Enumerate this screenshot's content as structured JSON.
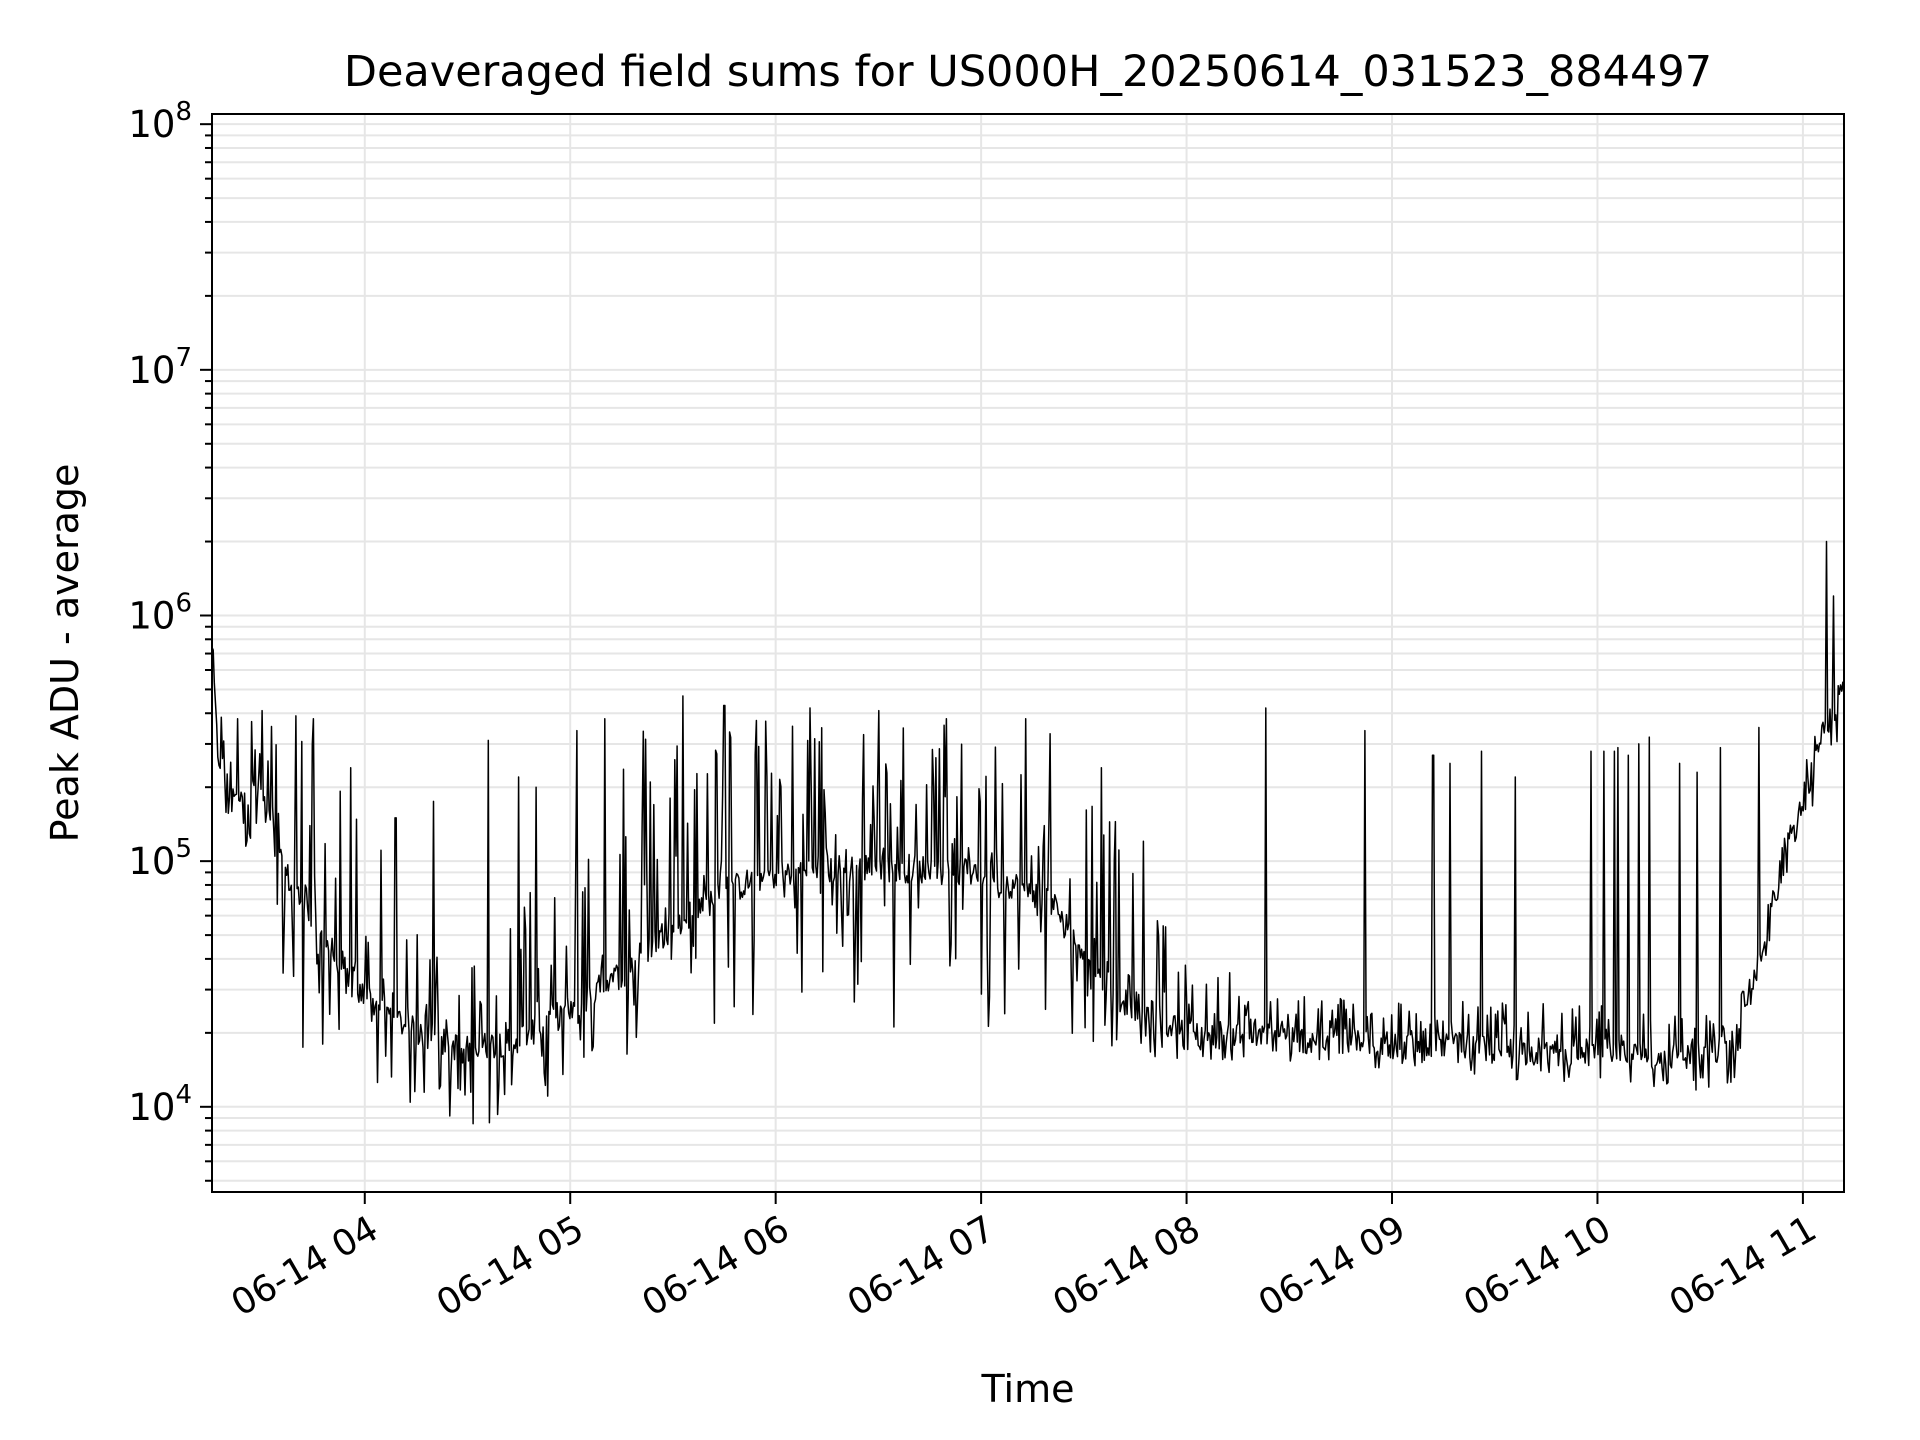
{
  "chart_data": {
    "type": "line",
    "title": "Deaveraged field sums for US000H_20250614_031523_884497",
    "xlabel": "Time",
    "ylabel": "Peak ADU - average",
    "x_axis": {
      "kind": "time",
      "range": [
        "06-14 03:15:23",
        "06-14 11:12:00"
      ],
      "ticks": [
        "06-14 04",
        "06-14 05",
        "06-14 06",
        "06-14 07",
        "06-14 08",
        "06-14 09",
        "06-14 10",
        "06-14 11"
      ]
    },
    "y_axis": {
      "scale": "log",
      "range": [
        4500,
        110000000
      ],
      "ticks": [
        {
          "value": 10000,
          "base": "10",
          "exp": "4"
        },
        {
          "value": 100000,
          "base": "10",
          "exp": "5"
        },
        {
          "value": 1000000,
          "base": "10",
          "exp": "6"
        },
        {
          "value": 10000000,
          "base": "10",
          "exp": "7"
        },
        {
          "value": 100000000,
          "base": "10",
          "exp": "8"
        }
      ]
    },
    "grid": true,
    "line_color": "#000000",
    "series": [
      {
        "baseline": [
          [
            "06-14 03:15",
            1000000
          ],
          [
            "06-14 03:17",
            280000
          ],
          [
            "06-14 03:20",
            200000
          ],
          [
            "06-14 03:30",
            190000
          ],
          [
            "06-14 03:35",
            100000
          ],
          [
            "06-14 03:45",
            55000
          ],
          [
            "06-14 04:00",
            28000
          ],
          [
            "06-14 04:15",
            20000
          ],
          [
            "06-14 04:30",
            17000
          ],
          [
            "06-14 04:45",
            19000
          ],
          [
            "06-14 05:00",
            25000
          ],
          [
            "06-14 05:15",
            35000
          ],
          [
            "06-14 05:30",
            55000
          ],
          [
            "06-14 05:45",
            75000
          ],
          [
            "06-14 06:00",
            90000
          ],
          [
            "06-14 06:30",
            95000
          ],
          [
            "06-14 07:00",
            90000
          ],
          [
            "06-14 07:20",
            70000
          ],
          [
            "06-14 07:40",
            28000
          ],
          [
            "06-14 08:00",
            20000
          ],
          [
            "06-14 08:30",
            19000
          ],
          [
            "06-14 09:00",
            18000
          ],
          [
            "06-14 09:30",
            17000
          ],
          [
            "06-14 10:00",
            16500
          ],
          [
            "06-14 10:30",
            16000
          ],
          [
            "06-14 10:40",
            18000
          ],
          [
            "06-14 10:45",
            30000
          ],
          [
            "06-14 10:50",
            60000
          ],
          [
            "06-14 10:55",
            100000
          ],
          [
            "06-14 11:00",
            170000
          ],
          [
            "06-14 11:05",
            300000
          ],
          [
            "06-14 11:10",
            450000
          ],
          [
            "06-14 11:12",
            480000
          ]
        ],
        "low": [
          [
            "06-14 03:15",
            150000
          ],
          [
            "06-14 03:30",
            100000
          ],
          [
            "06-14 03:40",
            18000
          ],
          [
            "06-14 04:00",
            12000
          ],
          [
            "06-14 04:30",
            8000
          ],
          [
            "06-14 04:45",
            9000
          ],
          [
            "06-14 05:00",
            11000
          ],
          [
            "06-14 05:30",
            17000
          ],
          [
            "06-14 06:00",
            18000
          ],
          [
            "06-14 06:30",
            20000
          ],
          [
            "06-14 07:00",
            18000
          ],
          [
            "06-14 07:30",
            17000
          ],
          [
            "06-14 07:45",
            16000
          ],
          [
            "06-14 08:30",
            15000
          ],
          [
            "06-14 09:30",
            13000
          ],
          [
            "06-14 10:00",
            12000
          ],
          [
            "06-14 10:40",
            11000
          ],
          [
            "06-14 10:50",
            40000
          ],
          [
            "06-14 11:00",
            120000
          ],
          [
            "06-14 11:12",
            350000
          ]
        ],
        "high": [
          [
            "06-14 03:15",
            450000
          ],
          [
            "06-14 03:30",
            380000
          ],
          [
            "06-14 03:45",
            370000
          ],
          [
            "06-14 04:00",
            150000
          ],
          [
            "06-14 04:15",
            60000
          ],
          [
            "06-14 04:30",
            40000
          ],
          [
            "06-14 04:45",
            80000
          ],
          [
            "06-14 05:00",
            150000
          ],
          [
            "06-14 05:15",
            380000
          ],
          [
            "06-14 05:30",
            450000
          ],
          [
            "06-14 06:00",
            380000
          ],
          [
            "06-14 06:30",
            400000
          ],
          [
            "06-14 07:00",
            380000
          ],
          [
            "06-14 07:15",
            350000
          ],
          [
            "06-14 07:30",
            250000
          ],
          [
            "06-14 07:45",
            150000
          ],
          [
            "06-14 08:00",
            40000
          ],
          [
            "06-14 08:30",
            30000
          ],
          [
            "06-14 09:00",
            28000
          ],
          [
            "06-14 10:00",
            26000
          ],
          [
            "06-14 10:40",
            24000
          ],
          [
            "06-14 10:50",
            70000
          ],
          [
            "06-14 11:00",
            250000
          ],
          [
            "06-14 11:12",
            600000
          ]
        ],
        "spikes": [
          [
            "06-14 03:23",
            380000
          ],
          [
            "06-14 03:27",
            370000
          ],
          [
            "06-14 03:30",
            410000
          ],
          [
            "06-14 03:40",
            390000
          ],
          [
            "06-14 03:45",
            380000
          ],
          [
            "06-14 03:56",
            240000
          ],
          [
            "06-14 04:09",
            150000
          ],
          [
            "06-14 04:20",
            175000
          ],
          [
            "06-14 04:36",
            310000
          ],
          [
            "06-14 04:45",
            220000
          ],
          [
            "06-14 04:50",
            200000
          ],
          [
            "06-14 05:02",
            340000
          ],
          [
            "06-14 05:10",
            380000
          ],
          [
            "06-14 05:33",
            470000
          ],
          [
            "06-14 05:45",
            430000
          ],
          [
            "06-14 06:10",
            420000
          ],
          [
            "06-14 06:30",
            410000
          ],
          [
            "06-14 06:50",
            380000
          ],
          [
            "06-14 07:13",
            380000
          ],
          [
            "06-14 07:20",
            330000
          ],
          [
            "06-14 07:35",
            240000
          ],
          [
            "06-14 08:23",
            420000
          ],
          [
            "06-14 08:52",
            340000
          ],
          [
            "06-14 09:12",
            270000
          ],
          [
            "06-14 09:17",
            250000
          ],
          [
            "06-14 09:26",
            280000
          ],
          [
            "06-14 09:36",
            220000
          ],
          [
            "06-14 09:58",
            280000
          ],
          [
            "06-14 10:02",
            280000
          ],
          [
            "06-14 10:05",
            280000
          ],
          [
            "06-14 10:06",
            290000
          ],
          [
            "06-14 10:09",
            270000
          ],
          [
            "06-14 10:12",
            300000
          ],
          [
            "06-14 10:15",
            320000
          ],
          [
            "06-14 10:24",
            250000
          ],
          [
            "06-14 10:29",
            230000
          ],
          [
            "06-14 10:36",
            290000
          ],
          [
            "06-14 10:47",
            350000
          ],
          [
            "06-14 11:07",
            2000000
          ],
          [
            "06-14 11:09",
            1200000
          ]
        ]
      }
    ]
  }
}
